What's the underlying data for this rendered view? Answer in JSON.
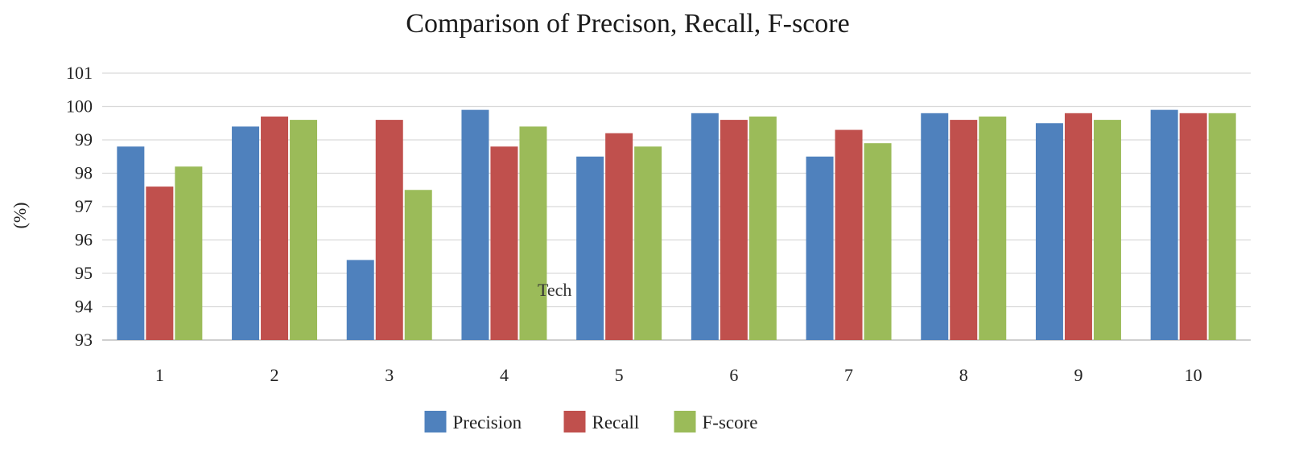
{
  "chart_data": {
    "type": "bar",
    "title": "Comparison of Precison, Recall, F-score",
    "ylabel": "(%)",
    "xlabel": "",
    "overlay_text": "Tech",
    "categories": [
      "1",
      "2",
      "3",
      "4",
      "5",
      "6",
      "7",
      "8",
      "9",
      "10"
    ],
    "ylim": [
      93,
      101
    ],
    "yticks": [
      "93",
      "94",
      "95",
      "96",
      "97",
      "98",
      "99",
      "100",
      "101"
    ],
    "grid": true,
    "legend_position": "bottom",
    "series": [
      {
        "name": "Precision",
        "color": "#4f81bd",
        "values": [
          98.8,
          99.4,
          95.4,
          99.9,
          98.5,
          99.8,
          98.5,
          99.8,
          99.5,
          99.9
        ]
      },
      {
        "name": "Recall",
        "color": "#c0504d",
        "values": [
          97.6,
          99.7,
          99.6,
          98.8,
          99.2,
          99.6,
          99.3,
          99.6,
          99.8,
          99.8
        ]
      },
      {
        "name": "F-score",
        "color": "#9bbb59",
        "values": [
          98.2,
          99.6,
          97.5,
          99.4,
          98.8,
          99.7,
          98.9,
          99.7,
          99.6,
          99.8
        ]
      }
    ]
  }
}
